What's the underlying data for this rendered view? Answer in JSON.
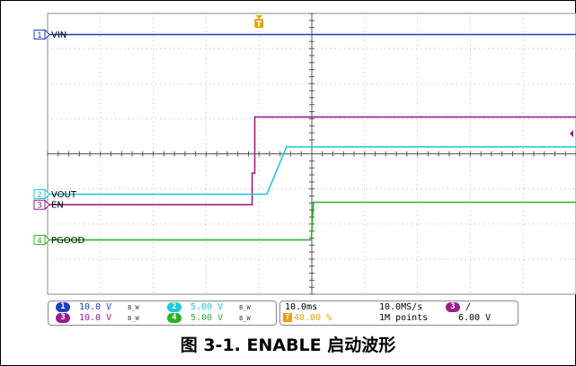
{
  "caption": "图 3-1. ENABLE 启动波形",
  "channels": [
    {
      "id": "1",
      "name": "VIN",
      "color": "#1f3fbf",
      "scale": "10.0 V"
    },
    {
      "id": "3",
      "name": "EN",
      "color": "#9b1d8c",
      "scale": "10.0 V"
    },
    {
      "id": "2",
      "name": "VOUT",
      "color": "#1ec8d8",
      "scale": "5.00 V"
    },
    {
      "id": "4",
      "name": "PGOOD",
      "color": "#2bb02b",
      "scale": "5.00 V"
    }
  ],
  "bw_symbol": "B_W",
  "timebase": {
    "time_div": "10.0ms",
    "trigger_pos": "40.00 %",
    "sample_rate": "10.0MS/s",
    "record_length": "1M points",
    "trigger_source": "3",
    "trigger_slope": "/",
    "trigger_level": "6.00 V"
  },
  "trigger_marker": "T",
  "colors": {
    "trigger": "#e8a000",
    "grid": "#b8b8b8",
    "border": "#888888"
  },
  "chart_data": {
    "type": "line",
    "x_unit": "ms",
    "x_range": [
      0,
      100
    ],
    "y_range": [
      -4,
      4
    ],
    "series": [
      {
        "name": "VIN",
        "x": [
          0,
          100
        ],
        "y": [
          3.4,
          3.4
        ]
      },
      {
        "name": "EN",
        "x": [
          0,
          38.7,
          38.7,
          39.2,
          39.2,
          100
        ],
        "y": [
          -1.45,
          -1.45,
          -0.55,
          -0.55,
          1.05,
          1.05
        ]
      },
      {
        "name": "VOUT",
        "x": [
          0,
          41.5,
          45.2,
          100
        ],
        "y": [
          -1.15,
          -1.15,
          0.2,
          0.2
        ]
      },
      {
        "name": "PGOOD",
        "x": [
          0,
          49.9,
          50.3,
          100
        ],
        "y": [
          -2.45,
          -2.45,
          -1.38,
          -1.38
        ]
      }
    ],
    "ground_markers": [
      {
        "channel": "1",
        "label": "VIN"
      },
      {
        "channel": "3",
        "label": "EN"
      },
      {
        "channel": "2",
        "label": "VOUT"
      },
      {
        "channel": "4",
        "label": "PGOOD"
      }
    ]
  }
}
